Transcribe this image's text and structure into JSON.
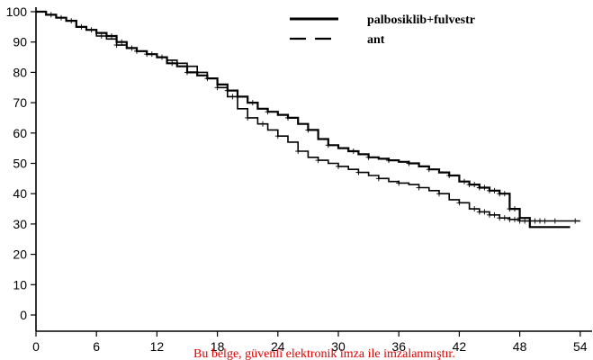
{
  "chart_data": {
    "type": "line",
    "title": "",
    "xlabel": "",
    "ylabel": "",
    "xlim": [
      0,
      55
    ],
    "ylim": [
      0,
      100
    ],
    "x_ticks": [
      0,
      6,
      12,
      18,
      24,
      30,
      36,
      42,
      48,
      54
    ],
    "y_ticks": [
      0,
      10,
      20,
      30,
      40,
      50,
      60,
      70,
      80,
      90,
      100
    ],
    "legend_position": "top-right",
    "series": [
      {
        "name": "palbosiklib+fulvestr",
        "style": "solid",
        "color": "#000000",
        "x": [
          0,
          1,
          2,
          3,
          4,
          5,
          6,
          7,
          8,
          9,
          10,
          11,
          12,
          13,
          14,
          15,
          16,
          17,
          18,
          19,
          20,
          21,
          22,
          23,
          24,
          25,
          26,
          27,
          28,
          29,
          30,
          31,
          32,
          33,
          34,
          35,
          36,
          37,
          38,
          39,
          40,
          41,
          42,
          43,
          44,
          45,
          46,
          47,
          48,
          49,
          53
        ],
        "y": [
          100,
          99,
          98,
          97,
          95,
          94,
          93,
          92,
          90,
          88,
          87,
          86,
          85,
          83,
          82,
          80,
          79,
          78,
          76,
          74,
          72,
          70,
          68,
          67,
          66,
          65,
          63,
          61,
          58,
          56,
          55,
          54,
          53,
          52,
          51.5,
          51,
          50.5,
          50,
          49,
          48,
          47,
          46,
          44,
          43,
          42,
          41,
          40,
          35,
          32,
          29,
          29
        ],
        "censor_x": [
          1.5,
          3.5,
          5.5,
          7.5,
          8.5,
          10,
          11.5,
          13.5,
          15,
          17,
          19,
          20,
          21.5,
          23,
          25,
          27,
          29,
          31.5,
          33,
          35,
          37,
          39,
          41,
          42.5,
          43,
          43.5,
          44,
          44.5,
          45,
          45.5,
          46,
          46.5,
          47,
          47.5,
          48
        ]
      },
      {
        "name": "ant",
        "style": "dashed",
        "color": "#000000",
        "x": [
          0,
          1,
          2,
          3,
          4,
          5,
          6,
          7,
          8,
          9,
          10,
          11,
          12,
          13,
          14,
          15,
          16,
          17,
          18,
          19,
          20,
          21,
          22,
          23,
          24,
          25,
          26,
          27,
          28,
          29,
          30,
          31,
          32,
          33,
          34,
          35,
          36,
          37,
          38,
          39,
          40,
          41,
          42,
          43,
          44,
          45,
          46,
          47,
          48,
          49,
          50,
          54
        ],
        "y": [
          100,
          99,
          98,
          97,
          95,
          94,
          92,
          91,
          89,
          88,
          87,
          86,
          85,
          84,
          83,
          82,
          80,
          78,
          75,
          72,
          68,
          65,
          63,
          61,
          59,
          57,
          54,
          52,
          51,
          50,
          49,
          48,
          47,
          46,
          45,
          44,
          43.5,
          43,
          42,
          41,
          40,
          38,
          37,
          35,
          34,
          33,
          32,
          31.5,
          31,
          31,
          31,
          31
        ],
        "censor_x": [
          2.5,
          4.5,
          6.5,
          8,
          9.5,
          11,
          12.5,
          14,
          16,
          18,
          19.5,
          21,
          22.5,
          24,
          26,
          28,
          30,
          32,
          34,
          36,
          38,
          40,
          42,
          43.5,
          44,
          44.5,
          45,
          45.5,
          46,
          46.5,
          47,
          47.5,
          48,
          48.5,
          49,
          49.5,
          50,
          50.5,
          51.5,
          53.5
        ]
      }
    ]
  },
  "watermark": {
    "text": "Bu belge, güvenli elektronik imza ile imzalanmıştır.",
    "color": "#e00000"
  }
}
